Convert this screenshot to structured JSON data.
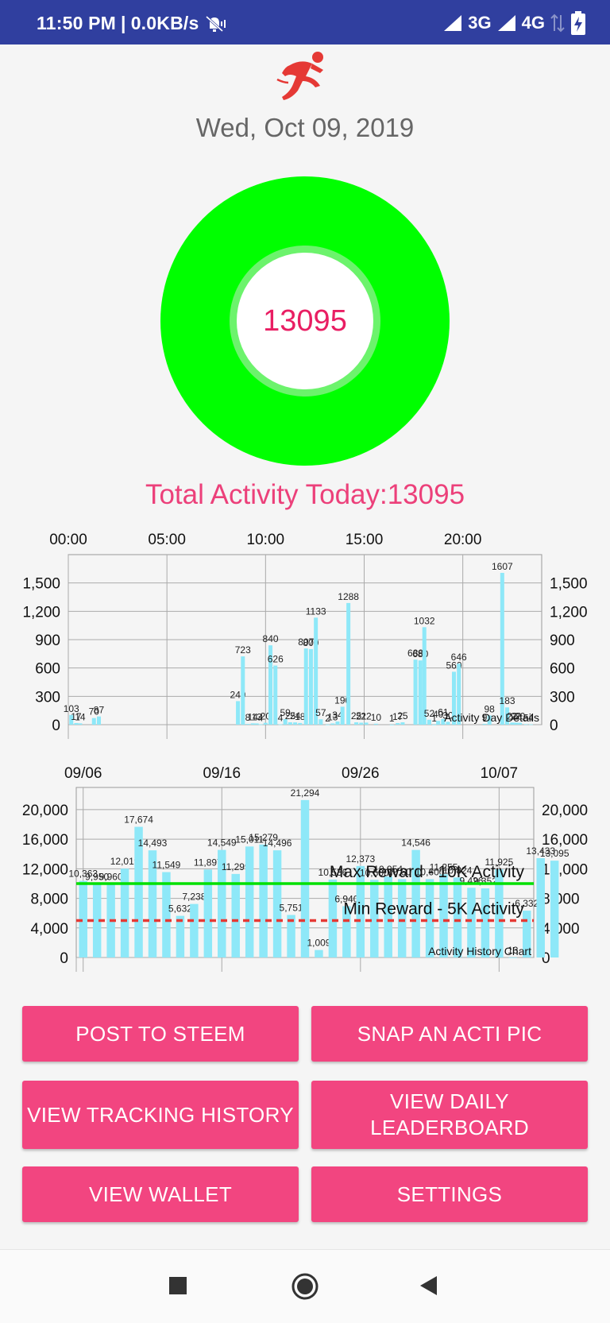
{
  "status_bar": {
    "time": "11:50 PM",
    "speed": "0.0KB/s",
    "network1": "3G",
    "network2": "4G"
  },
  "app": {
    "date": "Wed, Oct 09, 2019",
    "ring_value": "13095",
    "total_label": "Total Activity Today:13095",
    "colors": {
      "ring": "#00ff00",
      "accent": "#f24580",
      "bars": "#8ee8f8"
    }
  },
  "buttons": {
    "post": "POST TO STEEM",
    "snap": "SNAP AN ACTI PIC",
    "tracking": "VIEW TRACKING HISTORY",
    "leaderboard": "VIEW DAILY LEADERBOARD",
    "wallet": "VIEW WALLET",
    "settings": "SETTINGS"
  },
  "chart_data": [
    {
      "type": "bar",
      "description_label": "Activity Day Details",
      "x_unit": "hour",
      "xlim": [
        0,
        24
      ],
      "ylim": [
        0,
        1800
      ],
      "x_ticks": [
        "00:00",
        "05:00",
        "10:00",
        "15:00",
        "20:00"
      ],
      "y_ticks": [
        "0",
        "300",
        "600",
        "900",
        "1,200",
        "1,500"
      ],
      "grid": true,
      "bars": [
        {
          "x": 0.15,
          "value": 103,
          "label": "103"
        },
        {
          "x": 0.4,
          "value": 17,
          "label": "17"
        },
        {
          "x": 0.6,
          "value": 14,
          "label": "14"
        },
        {
          "x": 1.3,
          "value": 70,
          "label": "70"
        },
        {
          "x": 1.55,
          "value": 87,
          "label": "87"
        },
        {
          "x": 8.6,
          "value": 249,
          "label": "249"
        },
        {
          "x": 8.85,
          "value": 723,
          "label": "723"
        },
        {
          "x": 9.1,
          "value": 8,
          "label": "8"
        },
        {
          "x": 9.35,
          "value": 14,
          "label": "14"
        },
        {
          "x": 9.55,
          "value": 13,
          "label": "13"
        },
        {
          "x": 9.75,
          "value": 4,
          "label": "4"
        },
        {
          "x": 10.0,
          "value": 20,
          "label": "20"
        },
        {
          "x": 10.25,
          "value": 840,
          "label": "840"
        },
        {
          "x": 10.5,
          "value": 626,
          "label": "626"
        },
        {
          "x": 10.75,
          "value": 4,
          "label": "4"
        },
        {
          "x": 11.0,
          "value": 59,
          "label": "59"
        },
        {
          "x": 11.25,
          "value": 25,
          "label": "25"
        },
        {
          "x": 11.5,
          "value": 24,
          "label": "24"
        },
        {
          "x": 11.75,
          "value": 18,
          "label": "18"
        },
        {
          "x": 12.05,
          "value": 807,
          "label": "807"
        },
        {
          "x": 12.3,
          "value": 800,
          "label": "800"
        },
        {
          "x": 12.55,
          "value": 1133,
          "label": "1133"
        },
        {
          "x": 12.8,
          "value": 57,
          "label": "57"
        },
        {
          "x": 13.15,
          "value": 2,
          "label": "2"
        },
        {
          "x": 13.4,
          "value": 13,
          "label": "13"
        },
        {
          "x": 13.65,
          "value": 34,
          "label": "34"
        },
        {
          "x": 13.9,
          "value": 190,
          "label": "190"
        },
        {
          "x": 14.2,
          "value": 1288,
          "label": "1288"
        },
        {
          "x": 14.6,
          "value": 25,
          "label": "25"
        },
        {
          "x": 14.85,
          "value": 21,
          "label": "21"
        },
        {
          "x": 15.1,
          "value": 22,
          "label": "22"
        },
        {
          "x": 15.6,
          "value": 10,
          "label": "10"
        },
        {
          "x": 16.4,
          "value": 1,
          "label": "1"
        },
        {
          "x": 16.7,
          "value": 17,
          "label": "17"
        },
        {
          "x": 16.95,
          "value": 25,
          "label": "25"
        },
        {
          "x": 17.6,
          "value": 688,
          "label": "688"
        },
        {
          "x": 17.85,
          "value": 680,
          "label": "680"
        },
        {
          "x": 18.05,
          "value": 1032,
          "label": "1032"
        },
        {
          "x": 18.3,
          "value": 52,
          "label": "52"
        },
        {
          "x": 18.55,
          "value": 1,
          "label": "1"
        },
        {
          "x": 18.75,
          "value": 40,
          "label": "40"
        },
        {
          "x": 19.0,
          "value": 61,
          "label": "61"
        },
        {
          "x": 19.25,
          "value": 30,
          "label": "30"
        },
        {
          "x": 19.55,
          "value": 560,
          "label": "560"
        },
        {
          "x": 19.8,
          "value": 646,
          "label": "646"
        },
        {
          "x": 21.1,
          "value": 9,
          "label": "9"
        },
        {
          "x": 21.35,
          "value": 98,
          "label": "98"
        },
        {
          "x": 22.0,
          "value": 1607,
          "label": "1607"
        },
        {
          "x": 22.25,
          "value": 183,
          "label": "183"
        },
        {
          "x": 22.5,
          "value": 22,
          "label": "22"
        },
        {
          "x": 22.7,
          "value": 22,
          "label": "22"
        },
        {
          "x": 22.9,
          "value": 20,
          "label": "20"
        },
        {
          "x": 23.2,
          "value": 5,
          "label": "5"
        },
        {
          "x": 23.45,
          "value": 4,
          "label": "4"
        }
      ]
    },
    {
      "type": "bar",
      "description_label": "Activity History Chart",
      "x_unit": "day index starting 09/06",
      "xlim": [
        -0.5,
        32.5
      ],
      "ylim": [
        0,
        23000
      ],
      "x_ticks": [
        {
          "index": 0,
          "label": "09/06"
        },
        {
          "index": 10,
          "label": "09/16"
        },
        {
          "index": 20,
          "label": "09/26"
        },
        {
          "index": 30,
          "label": "10/07"
        }
      ],
      "y_ticks": [
        "0",
        "4,000",
        "8,000",
        "12,000",
        "16,000",
        "20,000"
      ],
      "grid": true,
      "limit_lines": [
        {
          "value": 10000,
          "label": "Max Reward - 10K Activity",
          "color": "#00e000",
          "style": "solid"
        },
        {
          "value": 5000,
          "label": "Min Reward - 5K Activity",
          "color": "#e53935",
          "style": "dashed"
        }
      ],
      "values": [
        10363,
        9950,
        9960,
        12019,
        17674,
        14493,
        11549,
        5632,
        7238,
        11897,
        14549,
        11299,
        15011,
        15279,
        14496,
        5751,
        21294,
        1009,
        10536,
        6940,
        12373,
        10500,
        10954,
        10600,
        14546,
        10600,
        11255,
        10824,
        9426,
        9352,
        11925,
        13,
        6332,
        13433,
        13095
      ],
      "labels": [
        "10,363",
        "9,950",
        "9,960",
        "12,019",
        "17,674",
        "14,493",
        "11,549",
        "5,632",
        "7,238",
        "11,897",
        "14,549",
        "11,299",
        "15,011",
        "15,279",
        "14,496",
        "5,751",
        "21,294",
        "1,009",
        "10,536",
        "6,940",
        "12,373",
        "10,500",
        "10,954",
        "10,600",
        "14,546",
        "10,600",
        "11,255",
        "10,824",
        "9,426",
        "9,352",
        "11,925",
        "13",
        "6,332",
        "13,433",
        "13,095"
      ]
    }
  ]
}
